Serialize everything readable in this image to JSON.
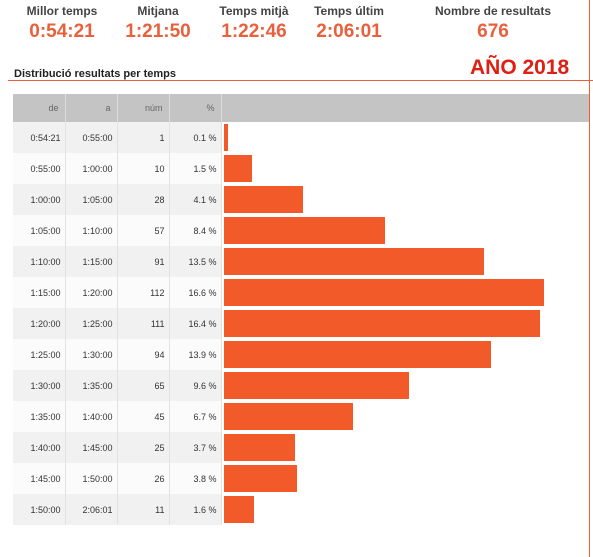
{
  "summary": {
    "best_label": "Millor temps",
    "best_value": "0:54:21",
    "median_label": "Mitjana",
    "median_value": "1:21:50",
    "average_label": "Temps mitjà",
    "average_value": "1:22:46",
    "last_label": "Temps últim",
    "last_value": "2:06:01",
    "count_label": "Nombre de resultats",
    "count_value": "676"
  },
  "year_label": "AÑO 2018",
  "distribution_title": "Distribució resultats per temps",
  "table": {
    "headers": [
      "de",
      "a",
      "núm",
      "%"
    ]
  },
  "chart_data": {
    "type": "bar",
    "orientation": "horizontal",
    "title": "Distribució resultats per temps",
    "columns": [
      "de",
      "a",
      "núm",
      "%"
    ],
    "rows": [
      {
        "de": "0:54:21",
        "a": "0:55:00",
        "num": 1,
        "pct": 0.1,
        "pct_label": "0.1 %"
      },
      {
        "de": "0:55:00",
        "a": "1:00:00",
        "num": 10,
        "pct": 1.5,
        "pct_label": "1.5 %"
      },
      {
        "de": "1:00:00",
        "a": "1:05:00",
        "num": 28,
        "pct": 4.1,
        "pct_label": "4.1 %"
      },
      {
        "de": "1:05:00",
        "a": "1:10:00",
        "num": 57,
        "pct": 8.4,
        "pct_label": "8.4 %"
      },
      {
        "de": "1:10:00",
        "a": "1:15:00",
        "num": 91,
        "pct": 13.5,
        "pct_label": "13.5 %"
      },
      {
        "de": "1:15:00",
        "a": "1:20:00",
        "num": 112,
        "pct": 16.6,
        "pct_label": "16.6 %"
      },
      {
        "de": "1:20:00",
        "a": "1:25:00",
        "num": 111,
        "pct": 16.4,
        "pct_label": "16.4 %"
      },
      {
        "de": "1:25:00",
        "a": "1:30:00",
        "num": 94,
        "pct": 13.9,
        "pct_label": "13.9 %"
      },
      {
        "de": "1:30:00",
        "a": "1:35:00",
        "num": 65,
        "pct": 9.6,
        "pct_label": "9.6 %"
      },
      {
        "de": "1:35:00",
        "a": "1:40:00",
        "num": 45,
        "pct": 6.7,
        "pct_label": "6.7 %"
      },
      {
        "de": "1:40:00",
        "a": "1:45:00",
        "num": 25,
        "pct": 3.7,
        "pct_label": "3.7 %"
      },
      {
        "de": "1:45:00",
        "a": "1:50:00",
        "num": 26,
        "pct": 3.8,
        "pct_label": "3.8 %"
      },
      {
        "de": "1:50:00",
        "a": "2:06:01",
        "num": 11,
        "pct": 1.6,
        "pct_label": "1.6 %"
      }
    ],
    "bar_color": "#f25a2a"
  },
  "colors": {
    "accent": "#e8603c",
    "year_red": "#e01e12",
    "header_gray": "#c4c4c4"
  }
}
